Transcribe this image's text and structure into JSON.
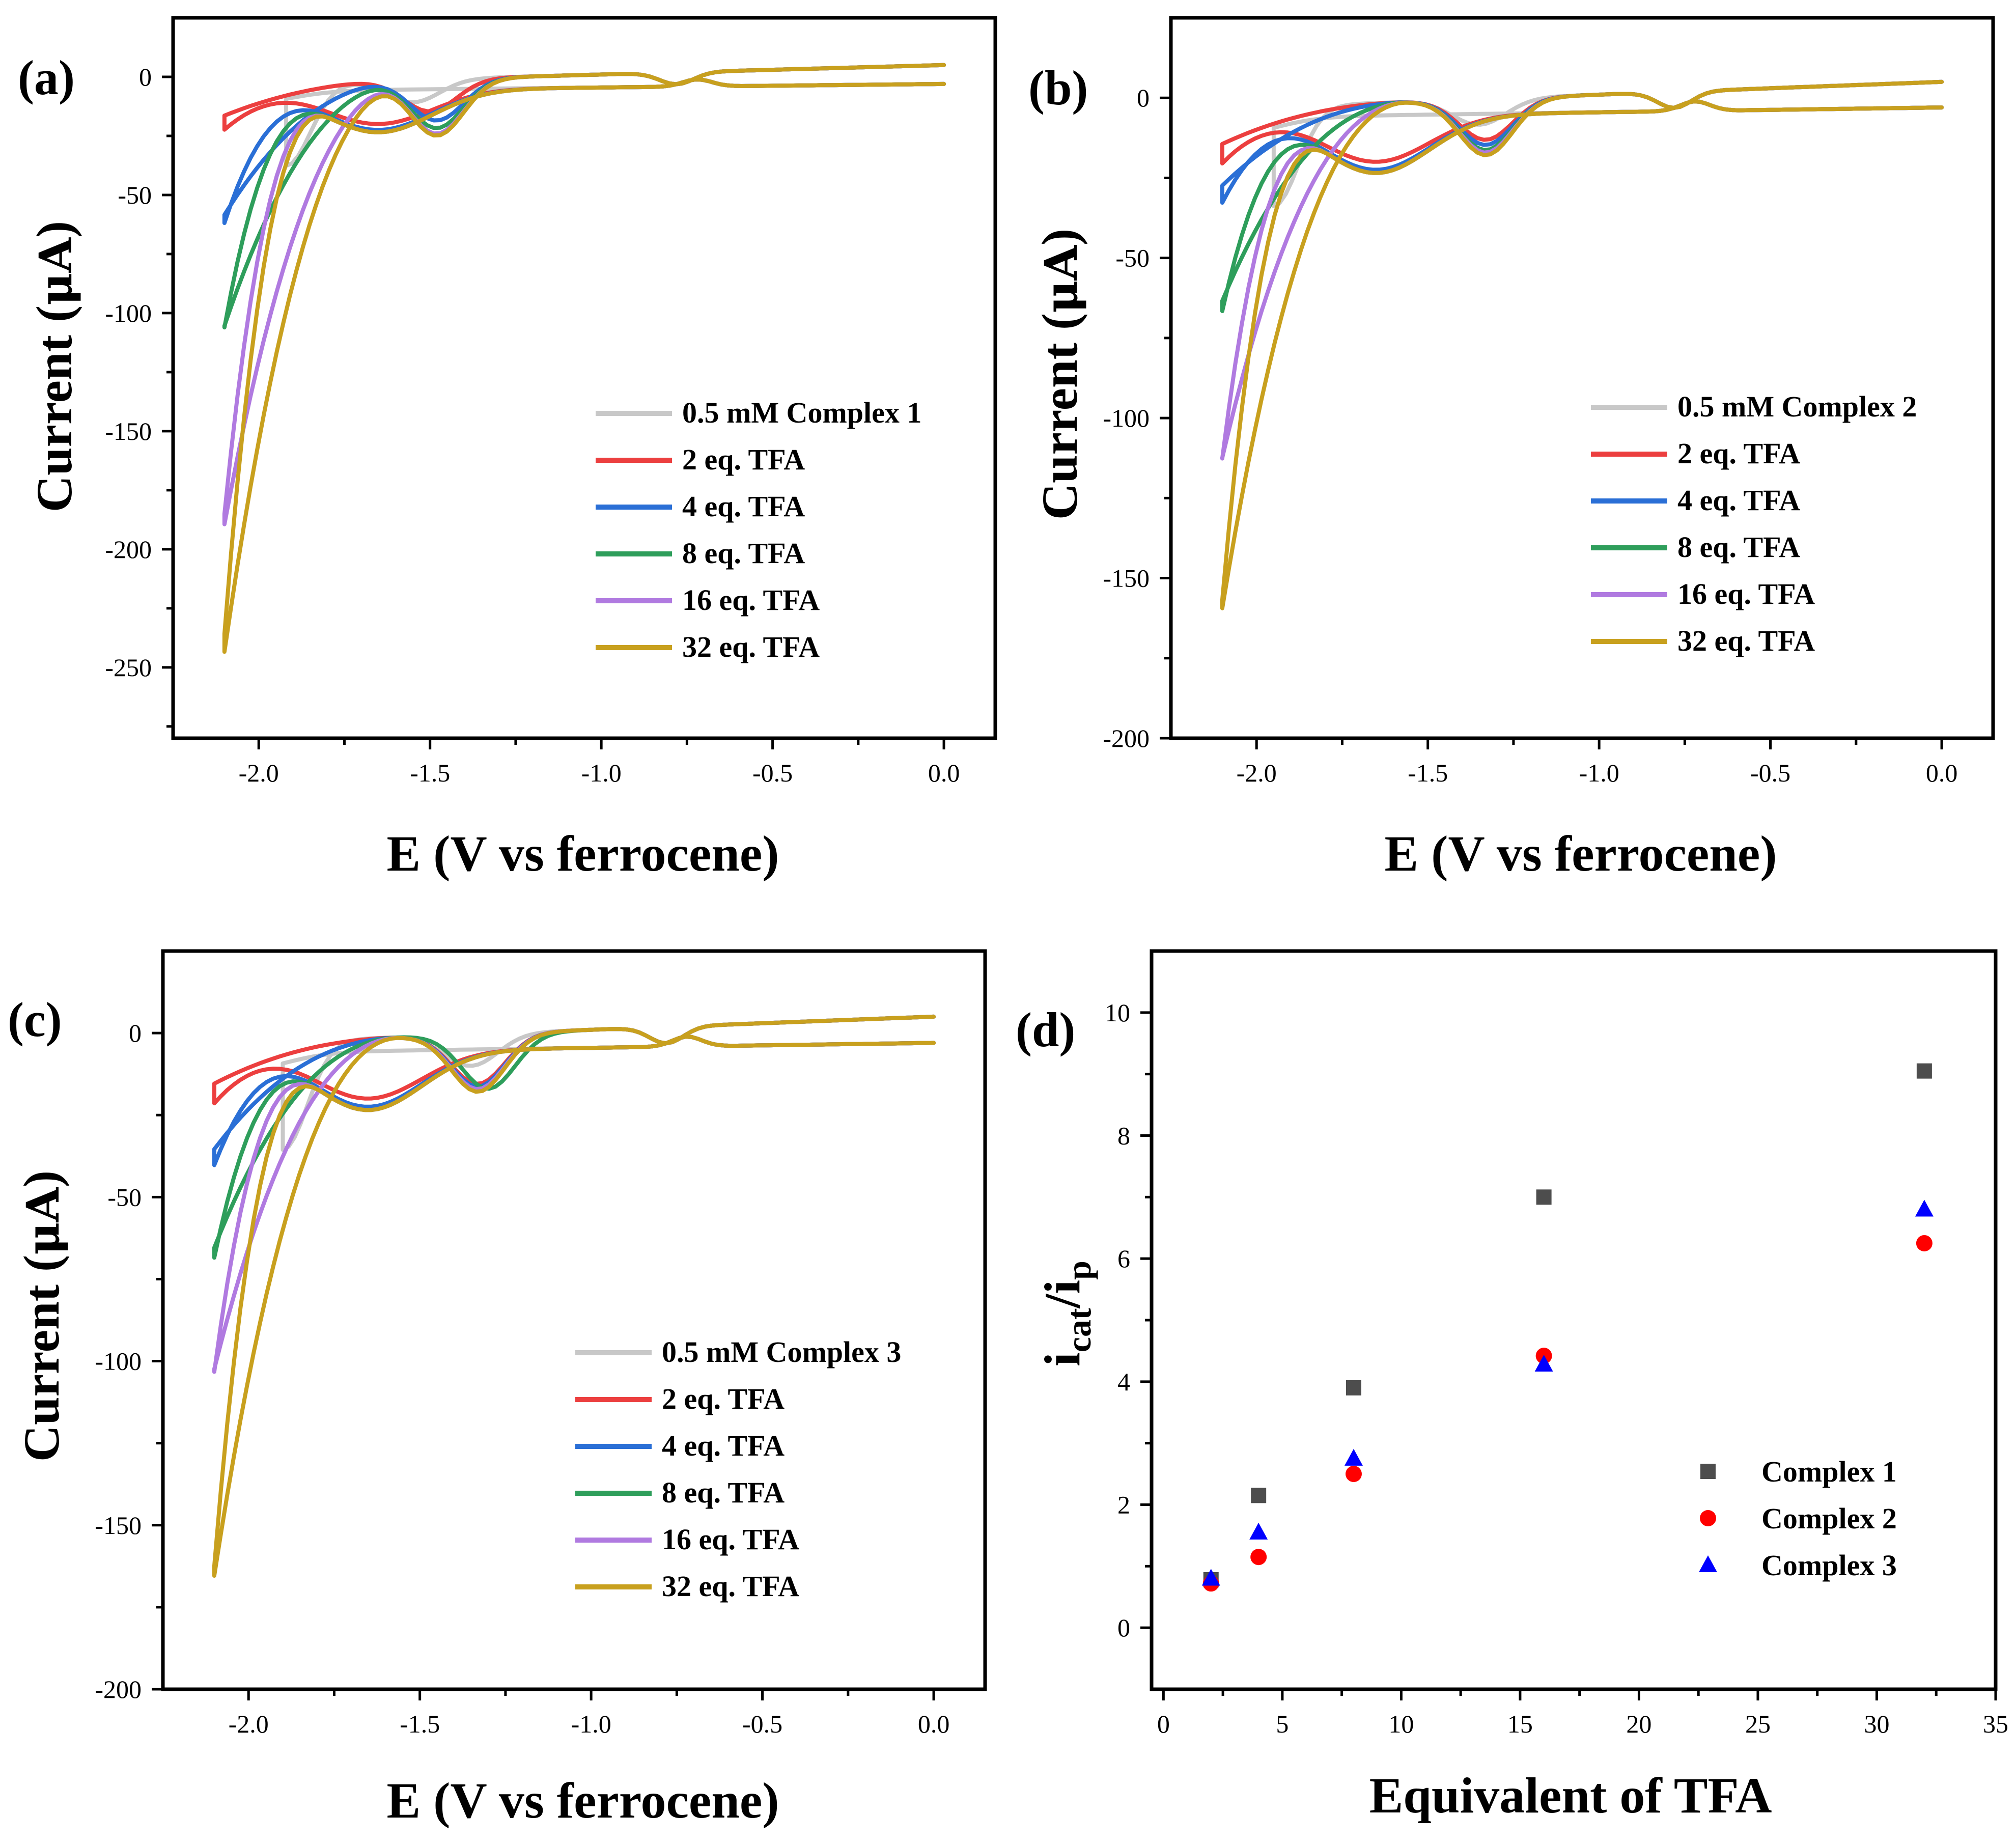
{
  "colors": {
    "complex": "#c8c8c8",
    "eq2": "#ec3f3f",
    "eq4": "#2a6fd6",
    "eq8": "#2e9e5b",
    "eq16": "#b07ae0",
    "eq32": "#c8a01e",
    "c1": "#4d4d4d",
    "c2": "#ff0000",
    "c3": "#0000ff"
  },
  "chart_data": [
    {
      "type": "line",
      "panel_label": "(a)",
      "xlabel": "E (V vs ferrocene)",
      "ylabel_text": "Current (",
      "ylabel_unit": "μA",
      "ylabel_close": ")",
      "xlim": [
        -2.25,
        0.15
      ],
      "ylim": [
        -280,
        25
      ],
      "xticks": [
        -2.0,
        -1.5,
        -1.0,
        -0.5,
        0.0
      ],
      "xtick_labels": [
        "-2.0",
        "-1.5",
        "-1.0",
        "-0.5",
        "0.0"
      ],
      "yticks": [
        0,
        -50,
        -100,
        -150,
        -200,
        -250
      ],
      "ytick_labels": [
        "0",
        "-50",
        "-100",
        "-150",
        "-200",
        "-250"
      ],
      "legend": [
        "0.5 mM Complex 1",
        "2 eq. TFA",
        "4 eq. TFA",
        "8 eq. TFA",
        "16 eq. TFA",
        "32 eq. TFA"
      ],
      "series": [
        {
          "name": "0.5 mM Complex 1",
          "peak_current": -32,
          "reduction_wave": [
            -1.55,
            -12
          ],
          "peak_potential": -1.92
        },
        {
          "name": "2 eq. TFA",
          "peak_current": -25,
          "reduction_wave": [
            -1.5,
            -17
          ],
          "peak_potential": -2.1
        },
        {
          "name": "4 eq. TFA",
          "peak_current": -67,
          "reduction_wave": [
            -1.48,
            -22
          ],
          "peak_potential": -2.1
        },
        {
          "name": "8 eq. TFA",
          "peak_current": -114,
          "reduction_wave": [
            -1.48,
            -26
          ],
          "peak_potential": -2.1
        },
        {
          "name": "16 eq. TFA",
          "peak_current": -198,
          "reduction_wave": [
            -1.48,
            -29
          ],
          "peak_potential": -2.1
        },
        {
          "name": "32 eq. TFA",
          "peak_current": -252,
          "reduction_wave": [
            -1.48,
            -30
          ],
          "peak_potential": -2.1
        }
      ]
    },
    {
      "type": "line",
      "panel_label": "(b)",
      "xlabel": "E (V vs ferrocene)",
      "ylabel_text": "Current (",
      "ylabel_unit": "μA",
      "ylabel_close": ")",
      "xlim": [
        -2.25,
        0.15
      ],
      "ylim": [
        -200,
        25
      ],
      "xticks": [
        -2.0,
        -1.5,
        -1.0,
        -0.5,
        0.0
      ],
      "xtick_labels": [
        "-2.0",
        "-1.5",
        "-1.0",
        "-0.5",
        "0.0"
      ],
      "yticks": [
        0,
        -50,
        -100,
        -150,
        -200
      ],
      "ytick_labels": [
        "0",
        "-50",
        "-100",
        "-150",
        "-200"
      ],
      "legend": [
        "0.5 mM Complex 2",
        "2 eq. TFA",
        "4 eq. TFA",
        "8 eq. TFA",
        "16 eq. TFA",
        "32 eq. TFA"
      ],
      "series": [
        {
          "name": "0.5 mM Complex 2",
          "peak_current": -28,
          "reduction_wave": [
            -1.35,
            -10
          ],
          "peak_potential": -1.95
        },
        {
          "name": "2 eq. TFA",
          "peak_current": -23,
          "reduction_wave": [
            -1.33,
            -16
          ],
          "peak_potential": -2.1
        },
        {
          "name": "4 eq. TFA",
          "peak_current": -36,
          "reduction_wave": [
            -1.33,
            -18
          ],
          "peak_potential": -2.1
        },
        {
          "name": "8 eq. TFA",
          "peak_current": -72,
          "reduction_wave": [
            -1.33,
            -20
          ],
          "peak_potential": -2.1
        },
        {
          "name": "16 eq. TFA",
          "peak_current": -121,
          "reduction_wave": [
            -1.33,
            -21
          ],
          "peak_potential": -2.1
        },
        {
          "name": "32 eq. TFA",
          "peak_current": -168,
          "reduction_wave": [
            -1.33,
            -22
          ],
          "peak_potential": -2.1
        }
      ]
    },
    {
      "type": "line",
      "panel_label": "(c)",
      "xlabel": "E (V vs ferrocene)",
      "ylabel_text": "Current (",
      "ylabel_unit": "μA",
      "ylabel_close": ")",
      "xlim": [
        -2.25,
        0.15
      ],
      "ylim": [
        -200,
        25
      ],
      "xticks": [
        -2.0,
        -1.5,
        -1.0,
        -0.5,
        0.0
      ],
      "xtick_labels": [
        "-2.0",
        "-1.5",
        "-1.0",
        "-0.5",
        "0.0"
      ],
      "yticks": [
        0,
        -50,
        -100,
        -150,
        -200
      ],
      "ytick_labels": [
        "0",
        "-50",
        "-100",
        "-150",
        "-200"
      ],
      "legend": [
        "0.5 mM Complex 3",
        "2 eq. TFA",
        "4 eq. TFA",
        "8 eq. TFA",
        "16 eq. TFA",
        "32 eq. TFA"
      ],
      "series": [
        {
          "name": "0.5 mM Complex 3",
          "peak_current": -30,
          "reduction_wave": [
            -1.35,
            -12
          ],
          "peak_potential": -1.9
        },
        {
          "name": "2 eq. TFA",
          "peak_current": -24,
          "reduction_wave": [
            -1.33,
            -19
          ],
          "peak_potential": -2.1
        },
        {
          "name": "4 eq. TFA",
          "peak_current": -44,
          "reduction_wave": [
            -1.33,
            -20
          ],
          "peak_potential": -2.1
        },
        {
          "name": "8 eq. TFA",
          "peak_current": -74,
          "reduction_wave": [
            -1.3,
            -21
          ],
          "peak_potential": -2.1
        },
        {
          "name": "16 eq. TFA",
          "peak_current": -111,
          "reduction_wave": [
            -1.33,
            -21
          ],
          "peak_potential": -2.1
        },
        {
          "name": "32 eq. TFA",
          "peak_current": -174,
          "reduction_wave": [
            -1.33,
            -22
          ],
          "peak_potential": -2.1
        }
      ]
    },
    {
      "type": "scatter",
      "panel_label": "(d)",
      "xlabel": "Equivalent of TFA",
      "ylabel_i": "i",
      "ylabel_sub1": "cat",
      "ylabel_slash": "/i",
      "ylabel_sub2": "p",
      "xlim": [
        -0.5,
        35
      ],
      "ylim": [
        -1,
        11
      ],
      "xticks": [
        0,
        5,
        10,
        15,
        20,
        25,
        30,
        35
      ],
      "xtick_labels": [
        "0",
        "5",
        "10",
        "15",
        "20",
        "25",
        "30",
        "35"
      ],
      "yticks": [
        0,
        2,
        4,
        6,
        8,
        10
      ],
      "ytick_labels": [
        "0",
        "2",
        "4",
        "6",
        "8",
        "10"
      ],
      "legend": [
        "Complex 1",
        "Complex 2",
        "Complex 3"
      ],
      "x": [
        2,
        4,
        8,
        16,
        32
      ],
      "series": [
        {
          "name": "Complex 1",
          "marker": "square",
          "values": [
            0.78,
            2.15,
            3.9,
            7.0,
            9.05
          ]
        },
        {
          "name": "Complex 2",
          "marker": "circle",
          "values": [
            0.72,
            1.15,
            2.5,
            4.42,
            6.25
          ]
        },
        {
          "name": "Complex 3",
          "marker": "triangle",
          "values": [
            0.8,
            1.55,
            2.75,
            4.28,
            6.8
          ]
        }
      ]
    }
  ]
}
